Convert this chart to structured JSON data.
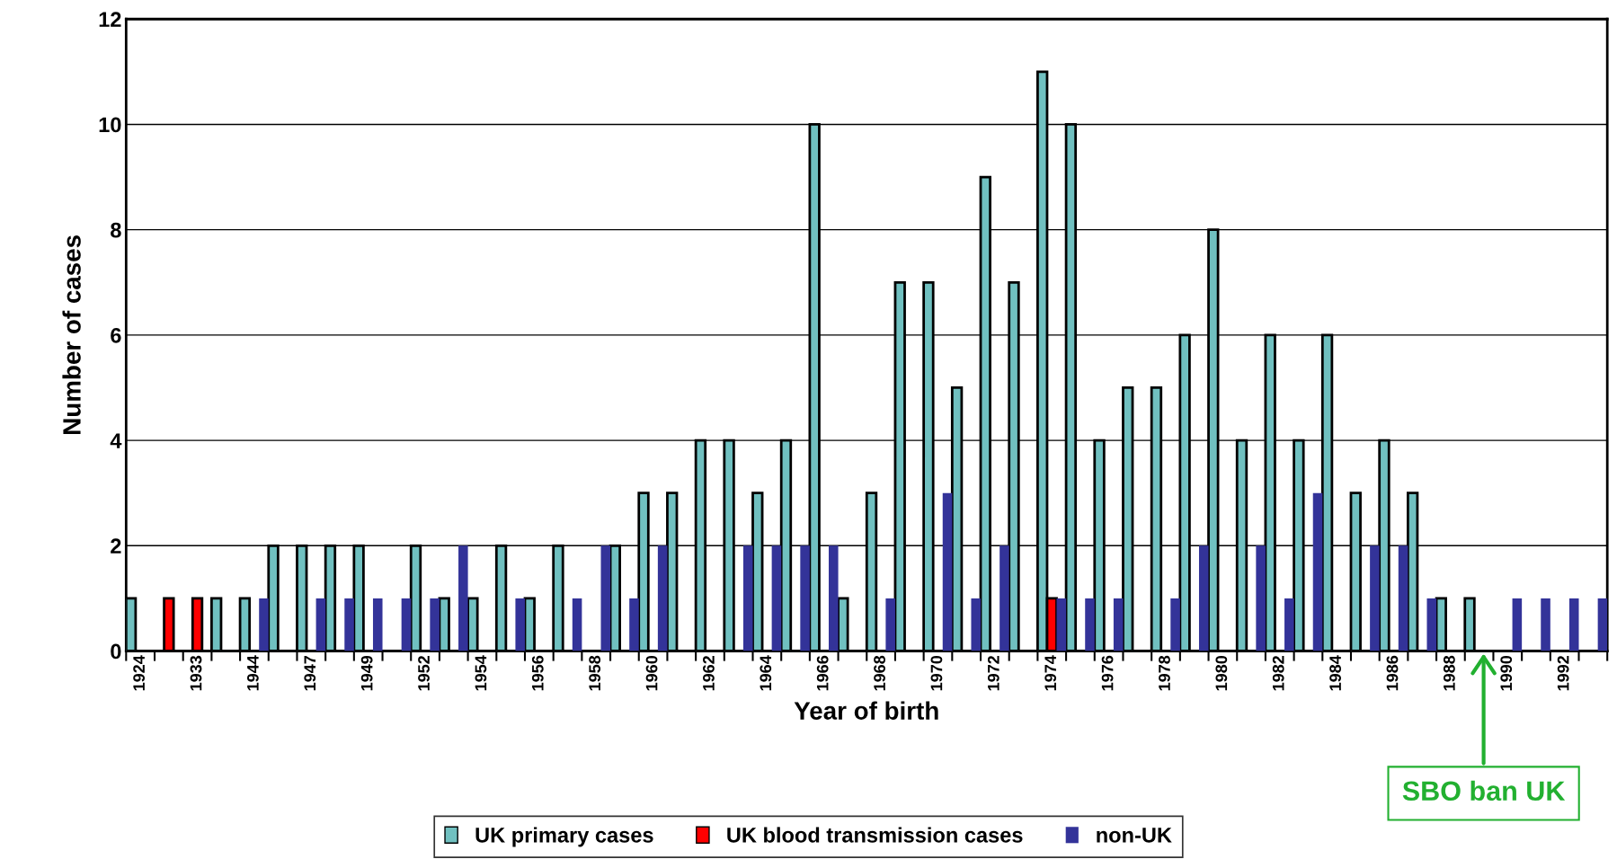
{
  "chart_data": {
    "type": "bar",
    "xlabel": "Year of birth",
    "ylabel": "Number of cases",
    "categories": [
      "1924",
      null,
      "1933",
      null,
      "1944",
      null,
      "1947",
      null,
      "1949",
      null,
      "1952",
      null,
      "1954",
      null,
      "1956",
      null,
      "1958",
      null,
      "1960",
      null,
      "1962",
      null,
      "1964",
      null,
      "1966",
      null,
      "1968",
      null,
      "1970",
      null,
      "1972",
      null,
      "1974",
      null,
      "1976",
      null,
      "1978",
      null,
      "1980",
      null,
      "1982",
      null,
      "1984",
      null,
      "1986",
      null,
      "1988",
      null,
      "1990",
      null,
      "1992",
      null
    ],
    "series": [
      {
        "name": "UK primary cases",
        "color": "#70c0c0",
        "values": [
          1,
          null,
          null,
          1,
          1,
          2,
          2,
          2,
          2,
          null,
          2,
          1,
          1,
          2,
          1,
          2,
          null,
          2,
          3,
          3,
          4,
          4,
          3,
          4,
          10,
          1,
          3,
          7,
          7,
          5,
          9,
          7,
          11,
          10,
          4,
          5,
          5,
          6,
          8,
          4,
          6,
          4,
          6,
          3,
          4,
          3,
          1,
          1,
          null,
          null,
          null,
          null
        ]
      },
      {
        "name": "UK blood transmission cases",
        "color": "#ff0000",
        "values": [
          null,
          1,
          1,
          null,
          null,
          null,
          null,
          null,
          null,
          null,
          null,
          null,
          null,
          null,
          null,
          null,
          null,
          null,
          null,
          null,
          null,
          null,
          null,
          null,
          null,
          null,
          null,
          null,
          null,
          null,
          null,
          null,
          1,
          null,
          null,
          null,
          null,
          null,
          null,
          null,
          null,
          null,
          null,
          null,
          null,
          null,
          null,
          null,
          null,
          null,
          null,
          null
        ]
      },
      {
        "name": "non-UK",
        "color": "#333399",
        "values": [
          null,
          null,
          null,
          null,
          1,
          null,
          1,
          1,
          1,
          1,
          1,
          2,
          null,
          1,
          null,
          1,
          2,
          1,
          2,
          null,
          null,
          2,
          2,
          2,
          2,
          null,
          1,
          null,
          3,
          1,
          2,
          null,
          1,
          1,
          1,
          null,
          1,
          2,
          null,
          2,
          1,
          3,
          null,
          2,
          2,
          1,
          null,
          null,
          1,
          1,
          1,
          1
        ]
      }
    ],
    "ylim": [
      0,
      12
    ],
    "yticks": [
      0,
      2,
      4,
      6,
      8,
      10,
      12
    ],
    "grid": "y",
    "legend": "bottom",
    "annotations": [
      "SBO ban UK"
    ]
  }
}
